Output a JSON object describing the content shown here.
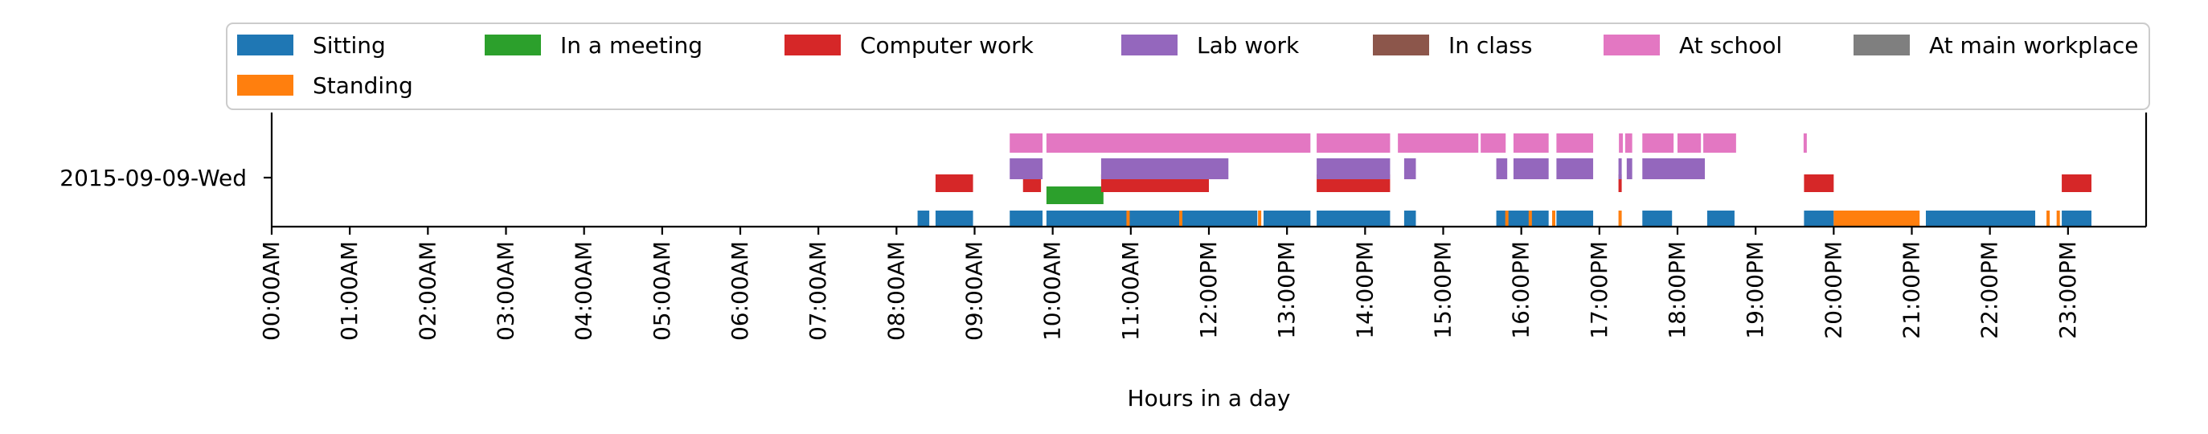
{
  "chart_data": {
    "type": "timeline",
    "xlabel": "Hours in a day",
    "row_label": "2015-09-09-Wed",
    "x_unit": "hour of day",
    "xlim": [
      0,
      24
    ],
    "x_ticks": [
      "00:00AM",
      "01:00AM",
      "02:00AM",
      "03:00AM",
      "04:00AM",
      "05:00AM",
      "06:00AM",
      "07:00AM",
      "08:00AM",
      "09:00AM",
      "10:00AM",
      "11:00AM",
      "12:00PM",
      "13:00PM",
      "14:00PM",
      "15:00PM",
      "16:00PM",
      "17:00PM",
      "18:00PM",
      "19:00PM",
      "20:00PM",
      "21:00PM",
      "22:00PM",
      "23:00PM"
    ],
    "legend": {
      "placement": "top",
      "items": [
        {
          "label": "Sitting",
          "color": "#1f77b4"
        },
        {
          "label": "In a meeting",
          "color": "#2ca02c"
        },
        {
          "label": "Computer work",
          "color": "#d62728"
        },
        {
          "label": "Lab work",
          "color": "#9467bd"
        },
        {
          "label": "In class",
          "color": "#8c564b"
        },
        {
          "label": "At school",
          "color": "#e377c2"
        },
        {
          "label": "At main workplace",
          "color": "#7f7f7f"
        },
        {
          "label": "Standing",
          "color": "#ff7f0e"
        }
      ]
    },
    "series": [
      {
        "label": "Sitting",
        "level": 0,
        "color": "#1f77b4",
        "intervals": [
          [
            8.27,
            8.42
          ],
          [
            8.5,
            8.98
          ],
          [
            9.45,
            9.87
          ],
          [
            9.92,
            12.62
          ],
          [
            12.7,
            13.3
          ],
          [
            13.38,
            14.32
          ],
          [
            14.5,
            14.65
          ],
          [
            15.68,
            16.35
          ],
          [
            16.45,
            16.92
          ],
          [
            17.55,
            17.93
          ],
          [
            18.38,
            18.73
          ],
          [
            19.62,
            20.0
          ],
          [
            21.18,
            22.58
          ],
          [
            22.92,
            23.3
          ]
        ]
      },
      {
        "label": "Standing",
        "level": 0,
        "color": "#ff7f0e",
        "intervals": [
          [
            10.95,
            10.98
          ],
          [
            11.62,
            11.66
          ],
          [
            12.63,
            12.67
          ],
          [
            15.8,
            15.83
          ],
          [
            16.1,
            16.13
          ],
          [
            16.4,
            16.43
          ],
          [
            17.25,
            17.28
          ],
          [
            20.0,
            21.1
          ],
          [
            22.73,
            22.76
          ],
          [
            22.86,
            22.89
          ]
        ]
      },
      {
        "label": "In a meeting",
        "level": 1,
        "color": "#2ca02c",
        "intervals": [
          [
            9.92,
            10.65
          ]
        ]
      },
      {
        "label": "Computer work",
        "level": 2,
        "color": "#d62728",
        "intervals": [
          [
            8.5,
            8.98
          ],
          [
            9.62,
            9.85
          ],
          [
            10.62,
            12.0
          ],
          [
            13.38,
            14.32
          ],
          [
            17.25,
            17.28
          ],
          [
            19.62,
            20.0
          ],
          [
            22.92,
            23.3
          ]
        ]
      },
      {
        "label": "Lab work",
        "level": 3,
        "color": "#9467bd",
        "intervals": [
          [
            9.45,
            9.87
          ],
          [
            10.62,
            12.25
          ],
          [
            13.38,
            14.32
          ],
          [
            14.5,
            14.65
          ],
          [
            15.68,
            15.82
          ],
          [
            15.9,
            16.35
          ],
          [
            16.45,
            16.92
          ],
          [
            17.25,
            17.28
          ],
          [
            17.35,
            17.42
          ],
          [
            17.55,
            18.35
          ]
        ]
      },
      {
        "label": "At school",
        "level": 4,
        "color": "#e377c2",
        "intervals": [
          [
            9.45,
            9.87
          ],
          [
            9.92,
            13.3
          ],
          [
            13.38,
            14.32
          ],
          [
            14.42,
            15.45
          ],
          [
            15.48,
            15.8
          ],
          [
            15.9,
            16.35
          ],
          [
            16.45,
            16.92
          ],
          [
            17.25,
            17.3
          ],
          [
            17.33,
            17.42
          ],
          [
            17.55,
            17.95
          ],
          [
            18.0,
            18.3
          ],
          [
            18.33,
            18.75
          ],
          [
            19.62,
            19.65
          ]
        ]
      }
    ]
  }
}
